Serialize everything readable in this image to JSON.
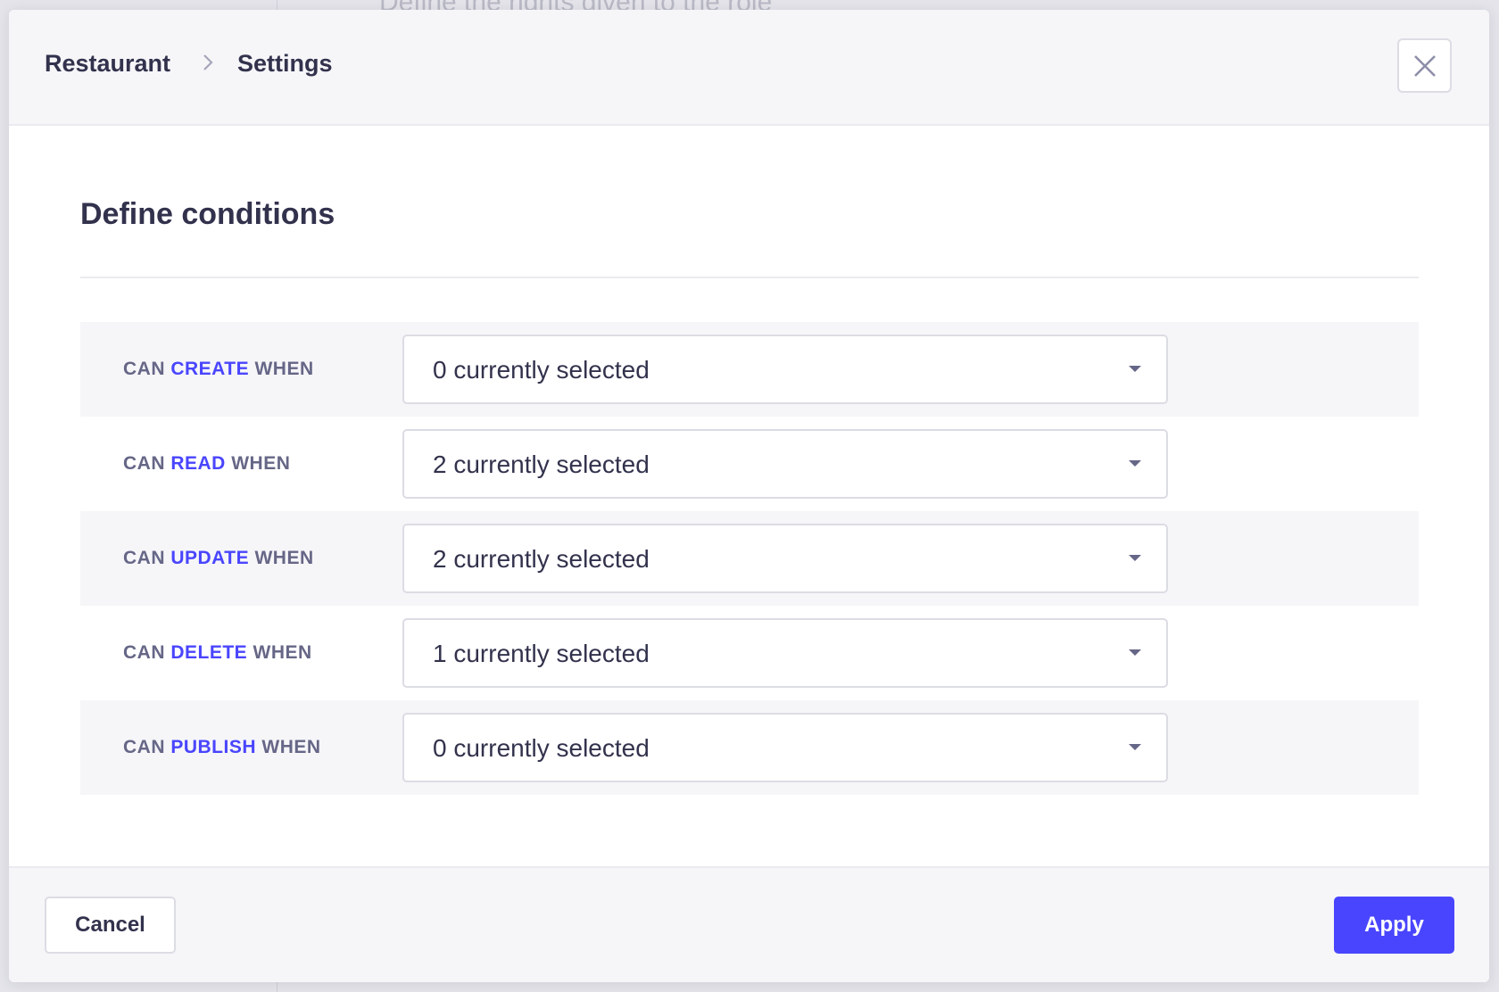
{
  "background": {
    "text": "Define the rights given to the role"
  },
  "modal": {
    "breadcrumb": [
      "Restaurant",
      "Settings"
    ],
    "close_icon": "close-icon",
    "title": "Define conditions",
    "conditions": [
      {
        "prefix": "CAN",
        "action": "CREATE",
        "suffix": "WHEN",
        "value": "0 currently selected"
      },
      {
        "prefix": "CAN",
        "action": "READ",
        "suffix": "WHEN",
        "value": "2 currently selected"
      },
      {
        "prefix": "CAN",
        "action": "UPDATE",
        "suffix": "WHEN",
        "value": "2 currently selected"
      },
      {
        "prefix": "CAN",
        "action": "DELETE",
        "suffix": "WHEN",
        "value": "1 currently selected"
      },
      {
        "prefix": "CAN",
        "action": "PUBLISH",
        "suffix": "WHEN",
        "value": "0 currently selected"
      }
    ],
    "footer": {
      "cancel_label": "Cancel",
      "apply_label": "Apply"
    }
  },
  "colors": {
    "accent": "#4945ff",
    "label": "#666687",
    "text": "#32324d",
    "surface": "#f6f6f9",
    "border": "#dcdce4"
  }
}
